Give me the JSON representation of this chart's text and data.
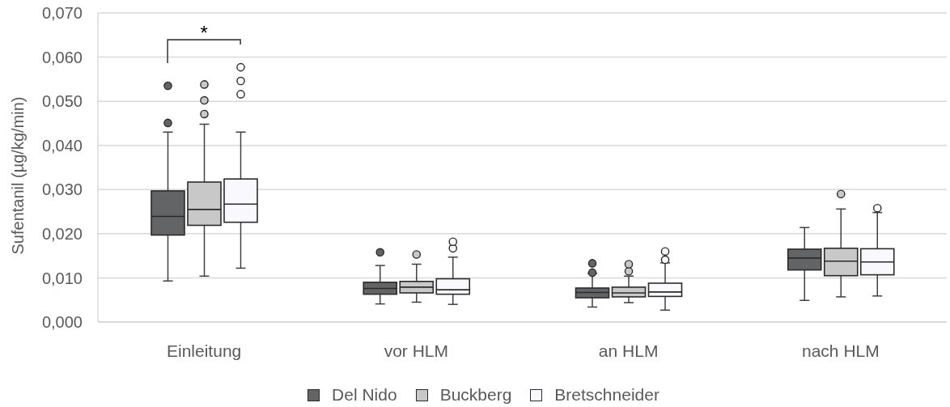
{
  "chart_data": {
    "type": "box",
    "ylabel": "Sufentanil (µg/kg/min)",
    "categories": [
      "Einleitung",
      "vor HLM",
      "an HLM",
      "nach HLM"
    ],
    "series": [
      {
        "name": "Del Nido",
        "color": "#636466",
        "boxes": [
          {
            "low": 0.0093,
            "q1": 0.0197,
            "median": 0.0239,
            "q3": 0.0297,
            "high": 0.043,
            "outliers": [
              0.0451,
              0.0535
            ]
          },
          {
            "low": 0.0041,
            "q1": 0.0063,
            "median": 0.0076,
            "q3": 0.009,
            "high": 0.0128,
            "outliers": [
              0.0158
            ]
          },
          {
            "low": 0.0034,
            "q1": 0.0055,
            "median": 0.0067,
            "q3": 0.0077,
            "high": 0.011,
            "outliers": [
              0.0112,
              0.0133
            ]
          },
          {
            "low": 0.0049,
            "q1": 0.0118,
            "median": 0.0145,
            "q3": 0.0165,
            "high": 0.0214
          }
        ]
      },
      {
        "name": "Buckberg",
        "color": "#c8c8c8",
        "boxes": [
          {
            "low": 0.0104,
            "q1": 0.0219,
            "median": 0.0255,
            "q3": 0.0317,
            "high": 0.0448,
            "outliers": [
              0.0471,
              0.0502,
              0.0538
            ]
          },
          {
            "low": 0.0045,
            "q1": 0.0066,
            "median": 0.0079,
            "q3": 0.0092,
            "high": 0.0131,
            "outliers": [
              0.0153
            ]
          },
          {
            "low": 0.0044,
            "q1": 0.0057,
            "median": 0.0066,
            "q3": 0.0079,
            "high": 0.0104,
            "outliers": [
              0.0115,
              0.0131
            ]
          },
          {
            "low": 0.0057,
            "q1": 0.0105,
            "median": 0.0138,
            "q3": 0.0167,
            "high": 0.0256,
            "outliers": [
              0.029
            ]
          }
        ]
      },
      {
        "name": "Bretschneider",
        "color": "#f9f8fd",
        "boxes": [
          {
            "low": 0.0122,
            "q1": 0.0226,
            "median": 0.0267,
            "q3": 0.0324,
            "high": 0.043,
            "outliers": [
              0.0516,
              0.0546,
              0.0577
            ]
          },
          {
            "low": 0.004,
            "q1": 0.0063,
            "median": 0.0073,
            "q3": 0.0098,
            "high": 0.0147,
            "outliers": [
              0.0167,
              0.0182
            ]
          },
          {
            "low": 0.0027,
            "q1": 0.0058,
            "median": 0.0068,
            "q3": 0.0088,
            "high": 0.0134,
            "outliers": [
              0.0141,
              0.016
            ]
          },
          {
            "low": 0.0059,
            "q1": 0.0107,
            "median": 0.0136,
            "q3": 0.0166,
            "high": 0.0248,
            "outliers": [
              0.0258
            ]
          }
        ]
      }
    ],
    "ylim": [
      0,
      0.07
    ],
    "yticks": [
      {
        "value": 0,
        "label": "0,000"
      },
      {
        "value": 0.01,
        "label": "0,010"
      },
      {
        "value": 0.02,
        "label": "0,020"
      },
      {
        "value": 0.03,
        "label": "0,030"
      },
      {
        "value": 0.04,
        "label": "0,040"
      },
      {
        "value": 0.05,
        "label": "0,050"
      },
      {
        "value": 0.06,
        "label": "0,060"
      },
      {
        "value": 0.07,
        "label": "0,070"
      }
    ],
    "grid": "y",
    "legend": "bottom",
    "marker": "circle",
    "annotations": [
      "*"
    ]
  }
}
